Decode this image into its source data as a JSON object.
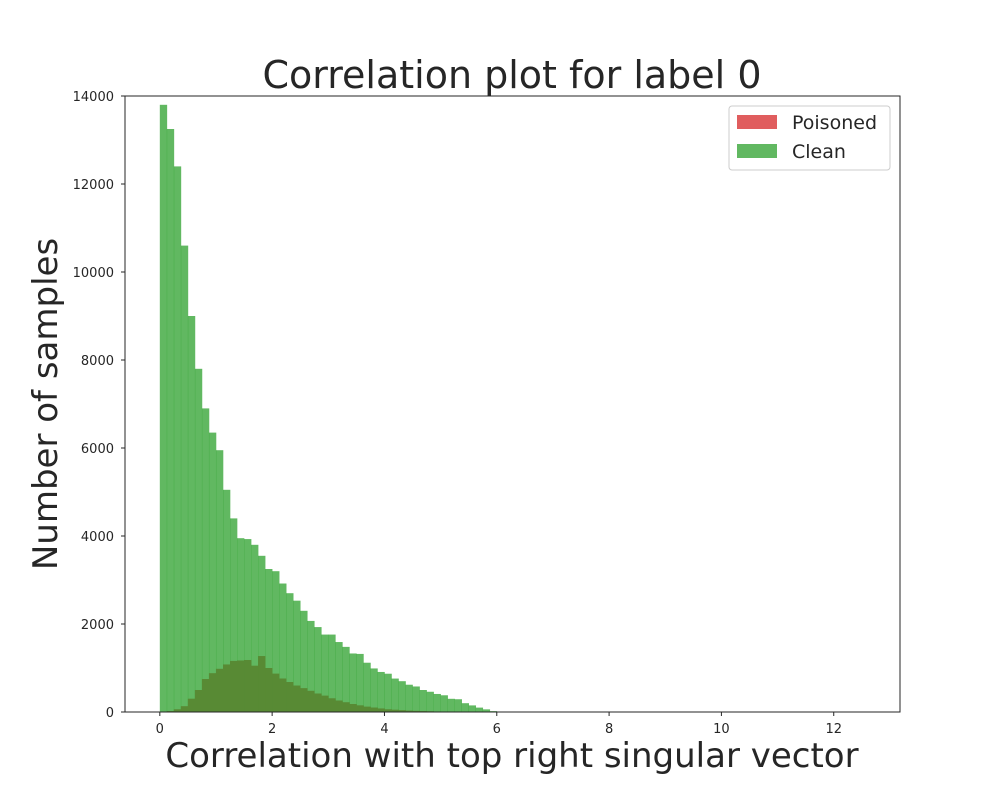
{
  "chart_data": {
    "type": "bar",
    "subtype": "overlaid-histogram",
    "title": "Correlation plot for label 0",
    "xlabel": "Correlation with top right singular vector",
    "ylabel": "Number of samples",
    "xlim": [
      -0.62,
      13.18
    ],
    "ylim": [
      0,
      14000
    ],
    "xticks": [
      0,
      2,
      4,
      6,
      8,
      10,
      12
    ],
    "yticks": [
      0,
      2000,
      4000,
      6000,
      8000,
      10000,
      12000,
      14000
    ],
    "bin_start": 0,
    "bin_width": 0.125,
    "grid": false,
    "legend_position": "top-right",
    "series": [
      {
        "name": "Poisoned",
        "color": "#d62728",
        "alpha": 0.75,
        "start_bin": 0,
        "counts": [
          0,
          20,
          60,
          130,
          300,
          500,
          750,
          880,
          980,
          1080,
          1160,
          1170,
          1180,
          1050,
          1270,
          1000,
          870,
          760,
          680,
          600,
          540,
          480,
          420,
          370,
          310,
          260,
          220,
          180,
          150,
          120,
          100,
          80,
          60,
          50,
          40,
          30,
          25,
          20,
          15,
          10,
          8,
          5
        ]
      },
      {
        "name": "Clean",
        "color": "#2ca02c",
        "alpha": 0.75,
        "start_bin": 0,
        "counts": [
          13800,
          13250,
          12400,
          10600,
          9000,
          7800,
          6900,
          6350,
          5950,
          5050,
          4400,
          3950,
          3930,
          3800,
          3550,
          3250,
          3200,
          2920,
          2700,
          2530,
          2300,
          2070,
          1930,
          1760,
          1760,
          1590,
          1480,
          1330,
          1320,
          1120,
          990,
          910,
          870,
          760,
          700,
          620,
          580,
          500,
          460,
          410,
          380,
          300,
          290,
          200,
          150,
          100,
          60,
          20,
          5
        ]
      }
    ]
  }
}
